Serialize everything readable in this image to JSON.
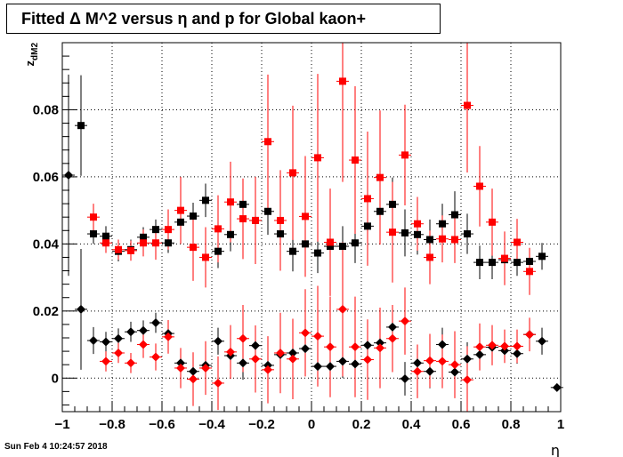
{
  "chart_data": {
    "type": "scatter",
    "title": "Fitted Δ M^2 versus η and p for Global kaon+",
    "xlabel": "η",
    "ylabel": "z_dM2",
    "xlim": [
      -1,
      1
    ],
    "ylim": [
      -0.01,
      0.1
    ],
    "x_ticks": [
      "−1",
      "−0.8",
      "−0.6",
      "−0.4",
      "−0.2",
      "0",
      "0.2",
      "0.4",
      "0.6",
      "0.8",
      "1"
    ],
    "x_tick_values": [
      -1,
      -0.8,
      -0.6,
      -0.4,
      -0.2,
      0,
      0.2,
      0.4,
      0.6,
      0.8,
      1
    ],
    "y_ticks": [
      "0",
      "0.02",
      "0.04",
      "0.06",
      "0.08"
    ],
    "y_tick_values": [
      0,
      0.02,
      0.04,
      0.06,
      0.08
    ],
    "grid": true,
    "series": [
      {
        "marker": "square",
        "color": "#000000",
        "points": [
          {
            "x": -0.925,
            "y": 0.0753,
            "e": 0.015
          },
          {
            "x": -0.875,
            "y": 0.043,
            "e": 0.003
          },
          {
            "x": -0.825,
            "y": 0.0423,
            "e": 0.003
          },
          {
            "x": -0.775,
            "y": 0.0378,
            "e": 0.003
          },
          {
            "x": -0.725,
            "y": 0.0383,
            "e": 0.003
          },
          {
            "x": -0.675,
            "y": 0.042,
            "e": 0.003
          },
          {
            "x": -0.625,
            "y": 0.0443,
            "e": 0.003
          },
          {
            "x": -0.575,
            "y": 0.0403,
            "e": 0.003
          },
          {
            "x": -0.525,
            "y": 0.0465,
            "e": 0.003
          },
          {
            "x": -0.475,
            "y": 0.0483,
            "e": 0.004
          },
          {
            "x": -0.425,
            "y": 0.053,
            "e": 0.005
          },
          {
            "x": -0.375,
            "y": 0.0378,
            "e": 0.005
          },
          {
            "x": -0.325,
            "y": 0.0428,
            "e": 0.005
          },
          {
            "x": -0.275,
            "y": 0.0518,
            "e": 0.006
          },
          {
            "x": -0.225,
            "y": 0.047,
            "e": 0.006
          },
          {
            "x": -0.175,
            "y": 0.0497,
            "e": 0.007
          },
          {
            "x": -0.125,
            "y": 0.043,
            "e": 0.006
          },
          {
            "x": -0.075,
            "y": 0.0378,
            "e": 0.006
          },
          {
            "x": -0.025,
            "y": 0.04,
            "e": 0.006
          },
          {
            "x": 0.025,
            "y": 0.0373,
            "e": 0.006
          },
          {
            "x": 0.075,
            "y": 0.0393,
            "e": 0.006
          },
          {
            "x": 0.125,
            "y": 0.0393,
            "e": 0.006
          },
          {
            "x": 0.175,
            "y": 0.0403,
            "e": 0.006
          },
          {
            "x": 0.225,
            "y": 0.0453,
            "e": 0.007
          },
          {
            "x": 0.275,
            "y": 0.0497,
            "e": 0.007
          },
          {
            "x": 0.325,
            "y": 0.0518,
            "e": 0.008
          },
          {
            "x": 0.375,
            "y": 0.0433,
            "e": 0.007
          },
          {
            "x": 0.425,
            "y": 0.0428,
            "e": 0.006
          },
          {
            "x": 0.475,
            "y": 0.0413,
            "e": 0.006
          },
          {
            "x": 0.525,
            "y": 0.046,
            "e": 0.006
          },
          {
            "x": 0.575,
            "y": 0.0487,
            "e": 0.007
          },
          {
            "x": 0.625,
            "y": 0.043,
            "e": 0.006
          },
          {
            "x": 0.675,
            "y": 0.0345,
            "e": 0.005
          },
          {
            "x": 0.725,
            "y": 0.0345,
            "e": 0.005
          },
          {
            "x": 0.775,
            "y": 0.0353,
            "e": 0.004
          },
          {
            "x": 0.825,
            "y": 0.0345,
            "e": 0.004
          },
          {
            "x": 0.875,
            "y": 0.0348,
            "e": 0.004
          },
          {
            "x": 0.925,
            "y": 0.0363,
            "e": 0.004
          }
        ]
      },
      {
        "marker": "square",
        "color": "#ff0000",
        "points": [
          {
            "x": -0.875,
            "y": 0.048,
            "e": 0.004
          },
          {
            "x": -0.825,
            "y": 0.0403,
            "e": 0.003
          },
          {
            "x": -0.775,
            "y": 0.0383,
            "e": 0.003
          },
          {
            "x": -0.725,
            "y": 0.038,
            "e": 0.003
          },
          {
            "x": -0.675,
            "y": 0.0403,
            "e": 0.004
          },
          {
            "x": -0.625,
            "y": 0.0403,
            "e": 0.005
          },
          {
            "x": -0.575,
            "y": 0.0443,
            "e": 0.006
          },
          {
            "x": -0.525,
            "y": 0.05,
            "e": 0.01
          },
          {
            "x": -0.475,
            "y": 0.039,
            "e": 0.01
          },
          {
            "x": -0.425,
            "y": 0.036,
            "e": 0.009
          },
          {
            "x": -0.375,
            "y": 0.0445,
            "e": 0.01
          },
          {
            "x": -0.325,
            "y": 0.0525,
            "e": 0.012
          },
          {
            "x": -0.275,
            "y": 0.0475,
            "e": 0.012
          },
          {
            "x": -0.225,
            "y": 0.047,
            "e": 0.013
          },
          {
            "x": -0.175,
            "y": 0.0705,
            "e": 0.02
          },
          {
            "x": -0.125,
            "y": 0.047,
            "e": 0.015
          },
          {
            "x": -0.075,
            "y": 0.0612,
            "e": 0.02
          },
          {
            "x": -0.025,
            "y": 0.0482,
            "e": 0.018
          },
          {
            "x": 0.025,
            "y": 0.0657,
            "e": 0.025
          },
          {
            "x": 0.075,
            "y": 0.0405,
            "e": 0.016
          },
          {
            "x": 0.125,
            "y": 0.0885,
            "e": 0.03
          },
          {
            "x": 0.175,
            "y": 0.065,
            "e": 0.022
          },
          {
            "x": 0.225,
            "y": 0.0535,
            "e": 0.02
          },
          {
            "x": 0.275,
            "y": 0.0598,
            "e": 0.02
          },
          {
            "x": 0.325,
            "y": 0.0435,
            "e": 0.015
          },
          {
            "x": 0.375,
            "y": 0.0665,
            "e": 0.015
          },
          {
            "x": 0.425,
            "y": 0.046,
            "e": 0.008
          },
          {
            "x": 0.475,
            "y": 0.036,
            "e": 0.008
          },
          {
            "x": 0.525,
            "y": 0.0415,
            "e": 0.007
          },
          {
            "x": 0.575,
            "y": 0.0413,
            "e": 0.007
          },
          {
            "x": 0.625,
            "y": 0.0813,
            "e": 0.02
          },
          {
            "x": 0.675,
            "y": 0.0572,
            "e": 0.012
          },
          {
            "x": 0.725,
            "y": 0.0465,
            "e": 0.01
          },
          {
            "x": 0.775,
            "y": 0.0357,
            "e": 0.008
          },
          {
            "x": 0.825,
            "y": 0.0405,
            "e": 0.007
          },
          {
            "x": 0.875,
            "y": 0.0318,
            "e": 0.007
          }
        ]
      },
      {
        "marker": "diamond",
        "color": "#000000",
        "points": [
          {
            "x": -0.975,
            "y": 0.0605,
            "e": 0.03
          },
          {
            "x": -0.925,
            "y": 0.0205,
            "e": 0.018
          },
          {
            "x": -0.875,
            "y": 0.0112,
            "e": 0.004
          },
          {
            "x": -0.825,
            "y": 0.0108,
            "e": 0.003
          },
          {
            "x": -0.775,
            "y": 0.0118,
            "e": 0.003
          },
          {
            "x": -0.725,
            "y": 0.0138,
            "e": 0.003
          },
          {
            "x": -0.675,
            "y": 0.0142,
            "e": 0.003
          },
          {
            "x": -0.625,
            "y": 0.0165,
            "e": 0.003
          },
          {
            "x": -0.575,
            "y": 0.0133,
            "e": 0.003
          },
          {
            "x": -0.525,
            "y": 0.0045,
            "e": 0.004
          },
          {
            "x": -0.475,
            "y": 0.002,
            "e": 0.004
          },
          {
            "x": -0.425,
            "y": 0.0038,
            "e": 0.004
          },
          {
            "x": -0.375,
            "y": 0.011,
            "e": 0.004
          },
          {
            "x": -0.325,
            "y": 0.0067,
            "e": 0.005
          },
          {
            "x": -0.275,
            "y": 0.0045,
            "e": 0.005
          },
          {
            "x": -0.225,
            "y": 0.0097,
            "e": 0.005
          },
          {
            "x": -0.175,
            "y": 0.0038,
            "e": 0.005
          },
          {
            "x": -0.125,
            "y": 0.007,
            "e": 0.005
          },
          {
            "x": -0.075,
            "y": 0.0075,
            "e": 0.005
          },
          {
            "x": -0.025,
            "y": 0.0088,
            "e": 0.005
          },
          {
            "x": 0.025,
            "y": 0.0035,
            "e": 0.005
          },
          {
            "x": 0.075,
            "y": 0.0035,
            "e": 0.005
          },
          {
            "x": 0.125,
            "y": 0.005,
            "e": 0.005
          },
          {
            "x": 0.175,
            "y": 0.0042,
            "e": 0.005
          },
          {
            "x": 0.225,
            "y": 0.0098,
            "e": 0.005
          },
          {
            "x": 0.275,
            "y": 0.0105,
            "e": 0.005
          },
          {
            "x": 0.325,
            "y": 0.0152,
            "e": 0.005
          },
          {
            "x": 0.375,
            "y": -0.0002,
            "e": 0.005
          },
          {
            "x": 0.425,
            "y": 0.0045,
            "e": 0.005
          },
          {
            "x": 0.475,
            "y": 0.002,
            "e": 0.005
          },
          {
            "x": 0.525,
            "y": 0.01,
            "e": 0.005
          },
          {
            "x": 0.575,
            "y": 0.0018,
            "e": 0.005
          },
          {
            "x": 0.625,
            "y": 0.0057,
            "e": 0.005
          },
          {
            "x": 0.675,
            "y": 0.007,
            "e": 0.004
          },
          {
            "x": 0.725,
            "y": 0.0092,
            "e": 0.004
          },
          {
            "x": 0.775,
            "y": 0.0082,
            "e": 0.003
          },
          {
            "x": 0.825,
            "y": 0.0073,
            "e": 0.003
          },
          {
            "x": 0.875,
            "y": 0.013,
            "e": 0.003
          },
          {
            "x": 0.925,
            "y": 0.011,
            "e": 0.004
          },
          {
            "x": 0.985,
            "y": -0.0028,
            "e": 0.0
          }
        ]
      },
      {
        "marker": "diamond",
        "color": "#ff0000",
        "points": [
          {
            "x": -0.825,
            "y": 0.005,
            "e": 0.003
          },
          {
            "x": -0.775,
            "y": 0.0075,
            "e": 0.003
          },
          {
            "x": -0.725,
            "y": 0.0045,
            "e": 0.003
          },
          {
            "x": -0.675,
            "y": 0.01,
            "e": 0.004
          },
          {
            "x": -0.625,
            "y": 0.0063,
            "e": 0.004
          },
          {
            "x": -0.575,
            "y": 0.0123,
            "e": 0.005
          },
          {
            "x": -0.525,
            "y": 0.003,
            "e": 0.006
          },
          {
            "x": -0.475,
            "y": -0.0003,
            "e": 0.008
          },
          {
            "x": -0.425,
            "y": 0.003,
            "e": 0.008
          },
          {
            "x": -0.375,
            "y": -0.0015,
            "e": 0.008
          },
          {
            "x": -0.325,
            "y": 0.0078,
            "e": 0.008
          },
          {
            "x": -0.275,
            "y": 0.0118,
            "e": 0.01
          },
          {
            "x": -0.225,
            "y": 0.0057,
            "e": 0.01
          },
          {
            "x": -0.175,
            "y": 0.0025,
            "e": 0.01
          },
          {
            "x": -0.125,
            "y": 0.0075,
            "e": 0.012
          },
          {
            "x": -0.075,
            "y": 0.0057,
            "e": 0.012
          },
          {
            "x": -0.025,
            "y": 0.0135,
            "e": 0.013
          },
          {
            "x": 0.025,
            "y": 0.0125,
            "e": 0.015
          },
          {
            "x": 0.075,
            "y": 0.0093,
            "e": 0.015
          },
          {
            "x": 0.125,
            "y": 0.0205,
            "e": 0.02
          },
          {
            "x": 0.175,
            "y": 0.0093,
            "e": 0.015
          },
          {
            "x": 0.225,
            "y": 0.0055,
            "e": 0.012
          },
          {
            "x": 0.275,
            "y": 0.009,
            "e": 0.012
          },
          {
            "x": 0.325,
            "y": 0.0118,
            "e": 0.01
          },
          {
            "x": 0.375,
            "y": 0.017,
            "e": 0.01
          },
          {
            "x": 0.425,
            "y": 0.002,
            "e": 0.008
          },
          {
            "x": 0.475,
            "y": 0.0052,
            "e": 0.008
          },
          {
            "x": 0.525,
            "y": 0.005,
            "e": 0.008
          },
          {
            "x": 0.575,
            "y": 0.004,
            "e": 0.01
          },
          {
            "x": 0.625,
            "y": -0.0005,
            "e": 0.01
          },
          {
            "x": 0.675,
            "y": 0.0093,
            "e": 0.007
          },
          {
            "x": 0.725,
            "y": 0.0098,
            "e": 0.006
          },
          {
            "x": 0.775,
            "y": 0.0095,
            "e": 0.005
          },
          {
            "x": 0.825,
            "y": 0.0095,
            "e": 0.005
          },
          {
            "x": 0.875,
            "y": 0.013,
            "e": 0.005
          }
        ]
      }
    ]
  },
  "footer": {
    "timestamp": "Sun Feb  4 10:24:57 2018"
  }
}
